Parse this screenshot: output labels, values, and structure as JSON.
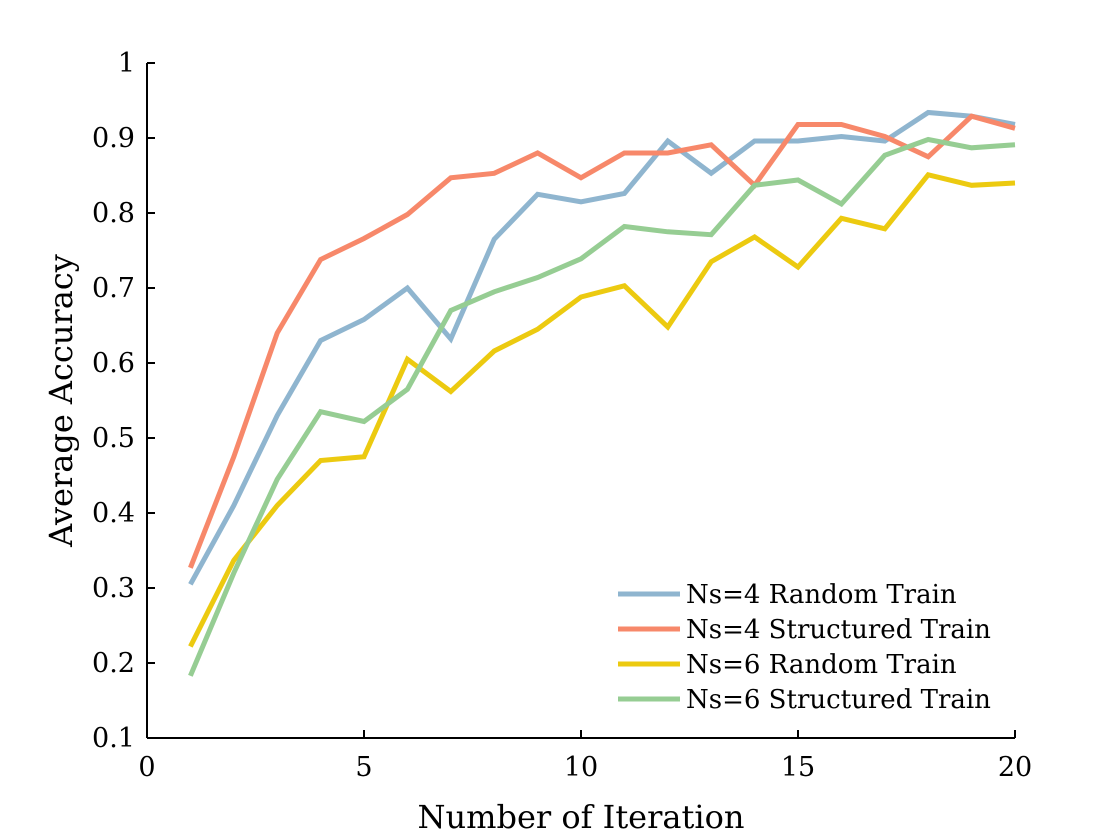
{
  "chart_data": {
    "type": "line",
    "title": "",
    "xlabel": "Number of Iteration",
    "ylabel": "Average Accuracy",
    "xlim": [
      0,
      20
    ],
    "ylim": [
      0.1,
      1
    ],
    "xticks": [
      0,
      5,
      10,
      15,
      20
    ],
    "xtick_labels": [
      "0",
      "5",
      "10",
      "15",
      "20"
    ],
    "yticks": [
      0.1,
      0.2,
      0.3,
      0.4,
      0.5,
      0.6,
      0.7,
      0.8,
      0.9,
      1
    ],
    "ytick_labels": [
      "0.1",
      "0.2",
      "0.3",
      "0.4",
      "0.5",
      "0.6",
      "0.7",
      "0.8",
      "0.9",
      "1"
    ],
    "grid": false,
    "legend_position": "bottom-right",
    "x": [
      1,
      2,
      3,
      4,
      5,
      6,
      7,
      8,
      9,
      10,
      11,
      12,
      13,
      14,
      15,
      16,
      17,
      18,
      19,
      20
    ],
    "series": [
      {
        "name": "Ns=4 Random Train",
        "color": "#8fb5cf",
        "values": [
          0.305,
          0.41,
          0.53,
          0.63,
          0.658,
          0.7,
          0.632,
          0.765,
          0.825,
          0.815,
          0.826,
          0.896,
          0.853,
          0.896,
          0.896,
          0.902,
          0.896,
          0.934,
          0.929,
          0.918
        ]
      },
      {
        "name": "Ns=4 Structured Train",
        "color": "#f7886a",
        "values": [
          0.327,
          0.475,
          0.64,
          0.738,
          0.766,
          0.798,
          0.847,
          0.853,
          0.88,
          0.847,
          0.88,
          0.88,
          0.891,
          0.837,
          0.918,
          0.918,
          0.902,
          0.875,
          0.929,
          0.913
        ]
      },
      {
        "name": "Ns=6 Random Train",
        "color": "#ecca10",
        "values": [
          0.222,
          0.337,
          0.41,
          0.47,
          0.475,
          0.605,
          0.562,
          0.616,
          0.645,
          0.688,
          0.703,
          0.648,
          0.735,
          0.768,
          0.728,
          0.793,
          0.779,
          0.851,
          0.837,
          0.84
        ]
      },
      {
        "name": "Ns=6 Structured Train",
        "color": "#96cd93",
        "values": [
          0.183,
          0.32,
          0.445,
          0.535,
          0.522,
          0.565,
          0.67,
          0.695,
          0.714,
          0.739,
          0.782,
          0.775,
          0.771,
          0.837,
          0.844,
          0.812,
          0.877,
          0.898,
          0.887,
          0.891
        ]
      }
    ]
  }
}
